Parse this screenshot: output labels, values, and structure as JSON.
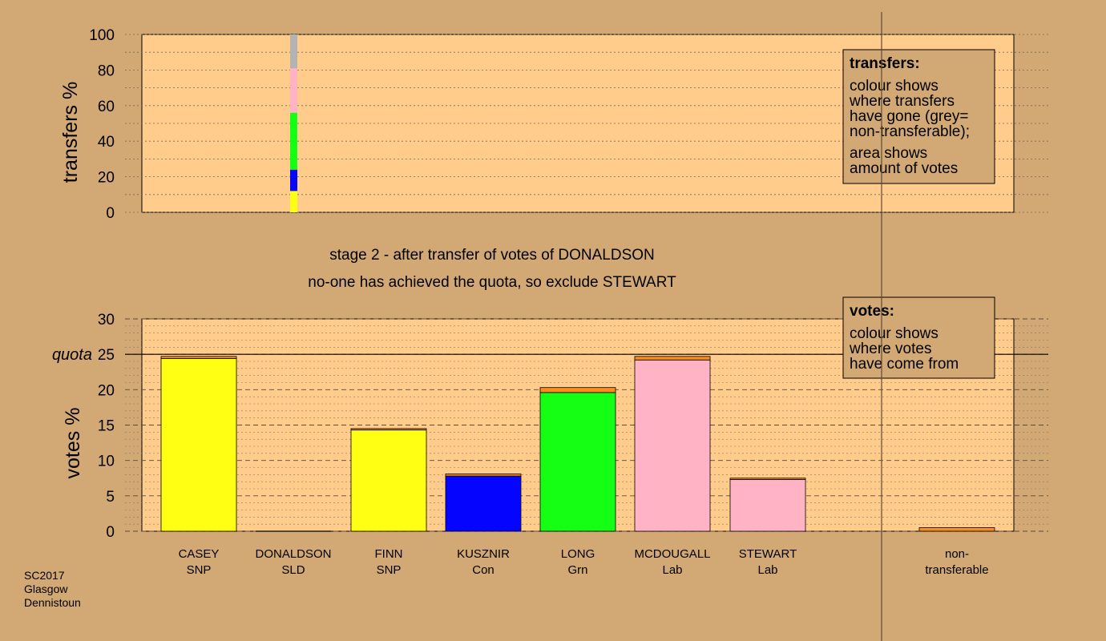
{
  "colors": {
    "background": "#d2a875",
    "panel": "#ffcc8c",
    "snp": "#ffff14",
    "con": "#0505ff",
    "grn": "#14ff14",
    "lab": "#ffb3c4",
    "nontransferable": "#b3b3b3",
    "transferred_in": "#ff8c1a"
  },
  "captions": {
    "line1": "stage 2 - after transfer of votes of DONALDSON",
    "line2": "no-one has achieved the quota, so exclude STEWART"
  },
  "legend_transfers": {
    "title": "transfers:",
    "lines": [
      "colour shows",
      "where transfers",
      "have gone (grey=",
      "non-transferable);",
      "area shows",
      "amount of votes"
    ]
  },
  "legend_votes": {
    "title": "votes:",
    "lines": [
      "colour shows",
      "where votes",
      "have come from"
    ]
  },
  "footer": [
    "SC2017",
    "Glasgow",
    "Dennistoun"
  ],
  "chart_data": [
    {
      "type": "bar",
      "name": "transfers",
      "ylabel": "transfers %",
      "ylim": [
        0,
        100
      ],
      "yticks": [
        0,
        20,
        40,
        60,
        80,
        100
      ],
      "grid": true,
      "stacked_column_for": "DONALDSON",
      "segments": [
        {
          "to": "SNP",
          "color": "#ffff14",
          "value": 12
        },
        {
          "to": "Con",
          "color": "#0505ff",
          "value": 12
        },
        {
          "to": "Grn",
          "color": "#14ff14",
          "value": 32
        },
        {
          "to": "Lab",
          "color": "#ffb3c4",
          "value": 25
        },
        {
          "to": "non-transferable",
          "color": "#b3b3b3",
          "value": 19
        }
      ]
    },
    {
      "type": "bar",
      "name": "votes",
      "ylabel": "votes %",
      "ylim": [
        0,
        30
      ],
      "yticks": [
        0,
        5,
        10,
        15,
        20,
        25,
        30
      ],
      "quota": 25,
      "quota_label": "quota",
      "grid": true,
      "categories": [
        "CASEY\nSNP",
        "DONALDSON\nSLD",
        "FINN\nSNP",
        "KUSZNIR\nCon",
        "LONG\nGrn",
        "MCDOUGALL\nLab",
        "STEWART\nLab",
        "non-\ntransferable"
      ],
      "series": [
        {
          "base_color": "#ffff14",
          "base": 24.4,
          "transfer": 0.3
        },
        {
          "base_color": "#ffff14",
          "base": 0,
          "transfer": 0
        },
        {
          "base_color": "#ffff14",
          "base": 14.3,
          "transfer": 0.2
        },
        {
          "base_color": "#0505ff",
          "base": 7.8,
          "transfer": 0.3
        },
        {
          "base_color": "#14ff14",
          "base": 19.6,
          "transfer": 0.7
        },
        {
          "base_color": "#ffb3c4",
          "base": 24.2,
          "transfer": 0.5
        },
        {
          "base_color": "#ffb3c4",
          "base": 7.3,
          "transfer": 0.2
        },
        {
          "base_color": "#ffb3c4",
          "base": 0,
          "transfer": 0.5
        }
      ]
    }
  ]
}
